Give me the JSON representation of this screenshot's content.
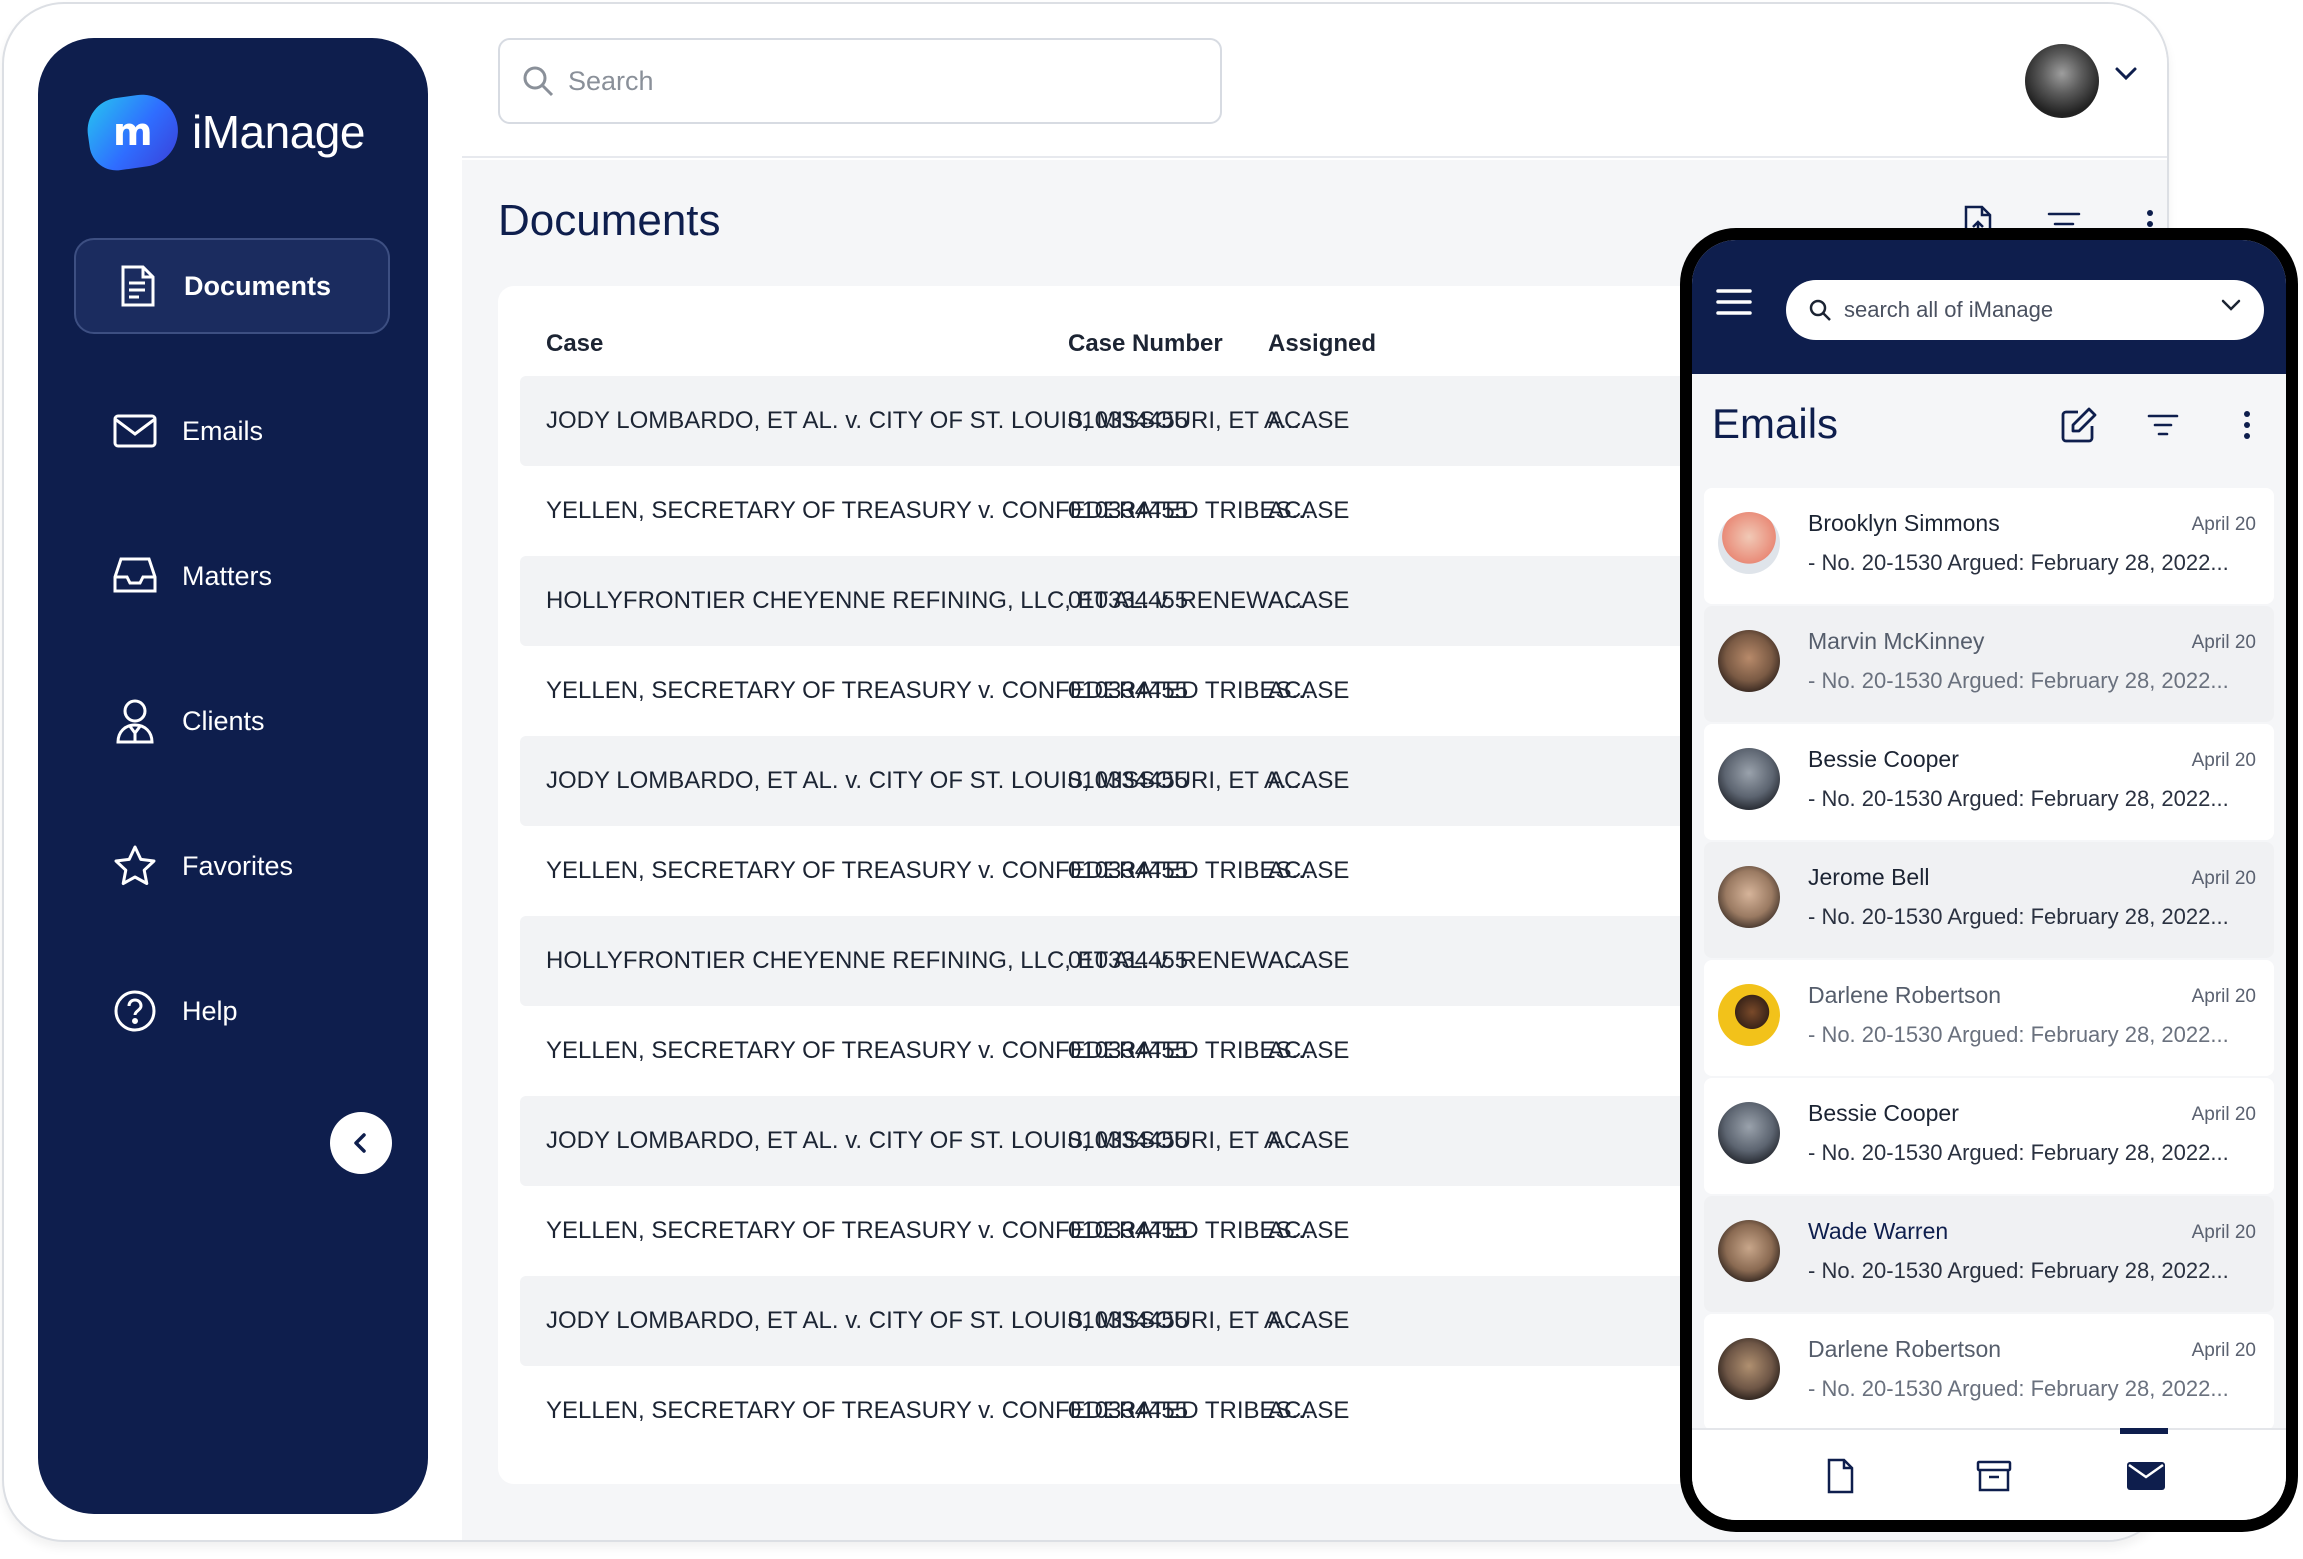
{
  "brand": {
    "logo_text": "iManage",
    "logo_mark": "m"
  },
  "sidebar": {
    "items": [
      {
        "label": "Documents",
        "icon": "document-icon",
        "active": true
      },
      {
        "label": "Emails",
        "icon": "mail-icon"
      },
      {
        "label": "Matters",
        "icon": "inbox-icon"
      },
      {
        "label": "Clients",
        "icon": "client-icon"
      },
      {
        "label": "Favorites",
        "icon": "star-icon"
      },
      {
        "label": "Help",
        "icon": "help-icon"
      }
    ],
    "collapse_icon": "chevron-left-icon"
  },
  "topbar": {
    "search_placeholder": "Search",
    "avatar": "user-avatar"
  },
  "documents": {
    "title": "Documents",
    "columns": [
      "Case",
      "Case Number",
      "Assigned"
    ],
    "rows": [
      {
        "case": "JODY LOMBARDO, ET AL. v. CITY OF ST. LOUIS, MISSOURI, ET A...",
        "number": "010334455",
        "assigned": "ACASE"
      },
      {
        "case": "YELLEN, SECRETARY OF TREASURY v. CONFEDERATED TRIBES...",
        "number": "010334455",
        "assigned": "ACASE"
      },
      {
        "case": "HOLLYFRONTIER CHEYENNE REFINING, LLC, ET AL. v. RENEWA...",
        "number": "010334455",
        "assigned": "ACASE"
      },
      {
        "case": "YELLEN, SECRETARY OF TREASURY v. CONFEDERATED TRIBES...",
        "number": "010334455",
        "assigned": "ACASE"
      },
      {
        "case": "JODY LOMBARDO, ET AL. v. CITY OF ST. LOUIS, MISSOURI, ET A...",
        "number": "010334455",
        "assigned": "ACASE"
      },
      {
        "case": "YELLEN, SECRETARY OF TREASURY v. CONFEDERATED TRIBES...",
        "number": "010334455",
        "assigned": "ACASE"
      },
      {
        "case": "HOLLYFRONTIER CHEYENNE REFINING, LLC, ET AL. v. RENEWA...",
        "number": "010334455",
        "assigned": "ACASE"
      },
      {
        "case": "YELLEN, SECRETARY OF TREASURY v. CONFEDERATED TRIBES...",
        "number": "010334455",
        "assigned": "ACASE"
      },
      {
        "case": "JODY LOMBARDO, ET AL. v. CITY OF ST. LOUIS, MISSOURI, ET A...",
        "number": "010334455",
        "assigned": "ACASE"
      },
      {
        "case": "YELLEN, SECRETARY OF TREASURY v. CONFEDERATED TRIBES...",
        "number": "010334455",
        "assigned": "ACASE"
      },
      {
        "case": "JODY LOMBARDO, ET AL. v. CITY OF ST. LOUIS, MISSOURI, ET A...",
        "number": "010334455",
        "assigned": "ACASE"
      },
      {
        "case": "YELLEN, SECRETARY OF TREASURY v. CONFEDERATED TRIBES...",
        "number": "010334455",
        "assigned": "ACASE"
      }
    ],
    "tools": [
      "upload-document-icon",
      "filter-icon",
      "more-vertical-icon"
    ]
  },
  "phone": {
    "search_placeholder": "search all of iManage",
    "title": "Emails",
    "tools": [
      "compose-icon",
      "filter-icon",
      "more-vertical-icon"
    ],
    "emails": [
      {
        "name": "Brooklyn Simmons",
        "date": "April 20",
        "preview": "- No. 20-1530 Argued: February 28, 2022...",
        "read": false,
        "color": "#e98b78"
      },
      {
        "name": "Marvin McKinney",
        "date": "April 20",
        "preview": "- No. 20-1530 Argued: February 28, 2022...",
        "read": true,
        "color": "#7a5a44"
      },
      {
        "name": "Bessie Cooper",
        "date": "April 20",
        "preview": "- No. 20-1530 Argued: February 28, 2022...",
        "read": false,
        "color": "#5c6470"
      },
      {
        "name": "Jerome Bell",
        "date": "April 20",
        "preview": "- No. 20-1530 Argued: February 28, 2022...",
        "read": false,
        "color": "#9a7a62"
      },
      {
        "name": "Darlene Robertson",
        "date": "April 20",
        "preview": "- No. 20-1530 Argued: February 28, 2022...",
        "read": true,
        "color": "#f2c21a"
      },
      {
        "name": "Bessie Cooper",
        "date": "April 20",
        "preview": "- No. 20-1530 Argued: February 28, 2022...",
        "read": false,
        "color": "#5c6470"
      },
      {
        "name": "Wade Warren",
        "date": "April 20",
        "preview": "- No. 20-1530 Argued: February 28, 2022...",
        "read": false,
        "color": "#8a6a52"
      },
      {
        "name": "Darlene Robertson",
        "date": "April 20",
        "preview": "- No. 20-1530 Argued: February 28, 2022...",
        "read": true,
        "color": "#6e5646"
      }
    ],
    "tabs": [
      {
        "icon": "document-icon",
        "active": false
      },
      {
        "icon": "archive-icon",
        "active": false
      },
      {
        "icon": "mail-icon",
        "active": true
      }
    ]
  },
  "colors": {
    "navy": "#0e1e4d",
    "background": "#f5f6f8",
    "accent": "#2f6dff"
  }
}
